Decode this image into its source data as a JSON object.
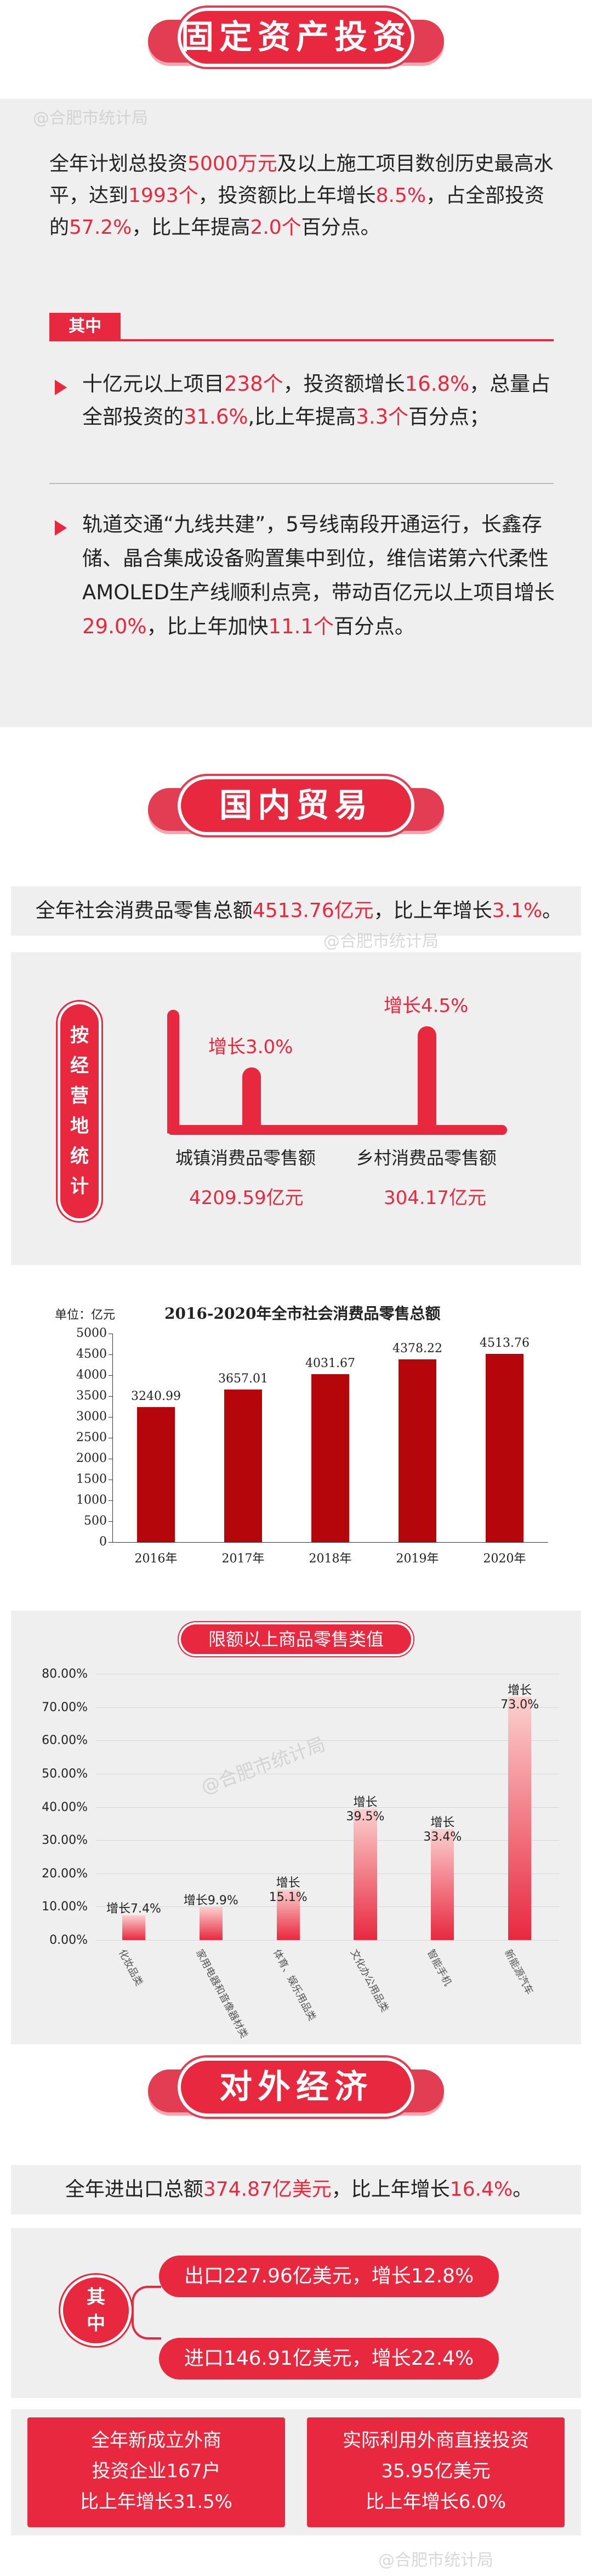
{
  "sec1": {
    "title": "固定资产投资",
    "watermark": "@合肥市统计局",
    "para1": [
      "全年计划总投资",
      "5000万元",
      "及以上施工项目数创历史最高水平，达到",
      "1993个",
      "，投资额比上年增长",
      "8.5%",
      "，占全部投资的",
      "57.2%",
      "，比上年提高",
      "2.0个",
      "百分点。"
    ],
    "tag": "其中",
    "item1": [
      "十亿元以上项目",
      "238个",
      "，投资额增长",
      "16.8%",
      "，总量占全部投资的",
      "31.6%",
      ",比上年提高",
      "3.3个",
      "百分点；"
    ],
    "item2": [
      "轨道交通“九线共建”，5号线南段开通运行，长鑫存储、晶合集成设备购置集中到位，维信诺第六代柔性AMOLED生产线顺利点亮，带动百亿元以上项目增长",
      "29.0%",
      "，比上年加快",
      "11.1个",
      "百分点。"
    ]
  },
  "sec2": {
    "title": "国内贸易",
    "headline": [
      "全年社会消费品零售总额",
      "4513.76亿元",
      "，比上年增长",
      "3.1%",
      "。"
    ],
    "watermark": "@合肥市统计局",
    "vertical_label": [
      "按",
      "经",
      "营",
      "地",
      "统",
      "计"
    ],
    "urban": {
      "growth": "增长3.0%",
      "label": "城镇消费品零售额",
      "value": "4209.59亿元"
    },
    "rural": {
      "growth": "增长4.5%",
      "label": "乡村消费品零售额",
      "value": "304.17亿元"
    }
  },
  "chart_data": [
    {
      "type": "bar",
      "title": "2016-2020年全市社会消费品零售总额",
      "unit_label": "单位：亿元",
      "categories": [
        "2016年",
        "2017年",
        "2018年",
        "2019年",
        "2020年"
      ],
      "values": [
        3240.99,
        3657.01,
        4031.67,
        4378.22,
        4513.76
      ],
      "value_labels": [
        "3240.99",
        "3657.01",
        "4031.67",
        "4378.22",
        "4513.76"
      ],
      "yticks": [
        "0",
        "500",
        "1000",
        "1500",
        "2000",
        "2500",
        "3000",
        "3500",
        "4000",
        "4500",
        "5000"
      ],
      "ylim": [
        0,
        5000
      ],
      "color": "#b5070b"
    },
    {
      "type": "bar",
      "title": "限额以上商品零售类值",
      "categories": [
        "化妆品类",
        "家用电器和音像器材类",
        "体育、娱乐用品类",
        "文化办公用品类",
        "智能手机",
        "新能源汽车"
      ],
      "values": [
        7.4,
        9.9,
        15.1,
        39.5,
        33.4,
        73.0
      ],
      "value_labels": [
        "增长7.4%",
        "增长9.9%",
        "增长15.1%",
        "增长39.5%",
        "增长33.4%",
        "增长73.0%"
      ],
      "yticks": [
        "0.00%",
        "10.00%",
        "20.00%",
        "30.00%",
        "40.00%",
        "50.00%",
        "60.00%",
        "70.00%",
        "80.00%"
      ],
      "ylim": [
        0,
        80
      ],
      "watermark": "@合肥市统计局"
    }
  ],
  "sec3": {
    "title": "对外经济",
    "headline": [
      "全年进出口总额",
      "374.87亿美元",
      "，比上年增长",
      "16.4%",
      "。"
    ],
    "tag": "其中",
    "export": "出口227.96亿美元，增长12.8%",
    "import": "进口146.91亿美元，增长22.4%",
    "card1": [
      "全年新成立外商",
      "投资企业167户",
      "比上年增长31.5%"
    ],
    "card2": [
      "实际利用外商直接投资",
      "35.95亿美元",
      "比上年增长6.0%"
    ],
    "watermark": "@合肥市统计局"
  }
}
